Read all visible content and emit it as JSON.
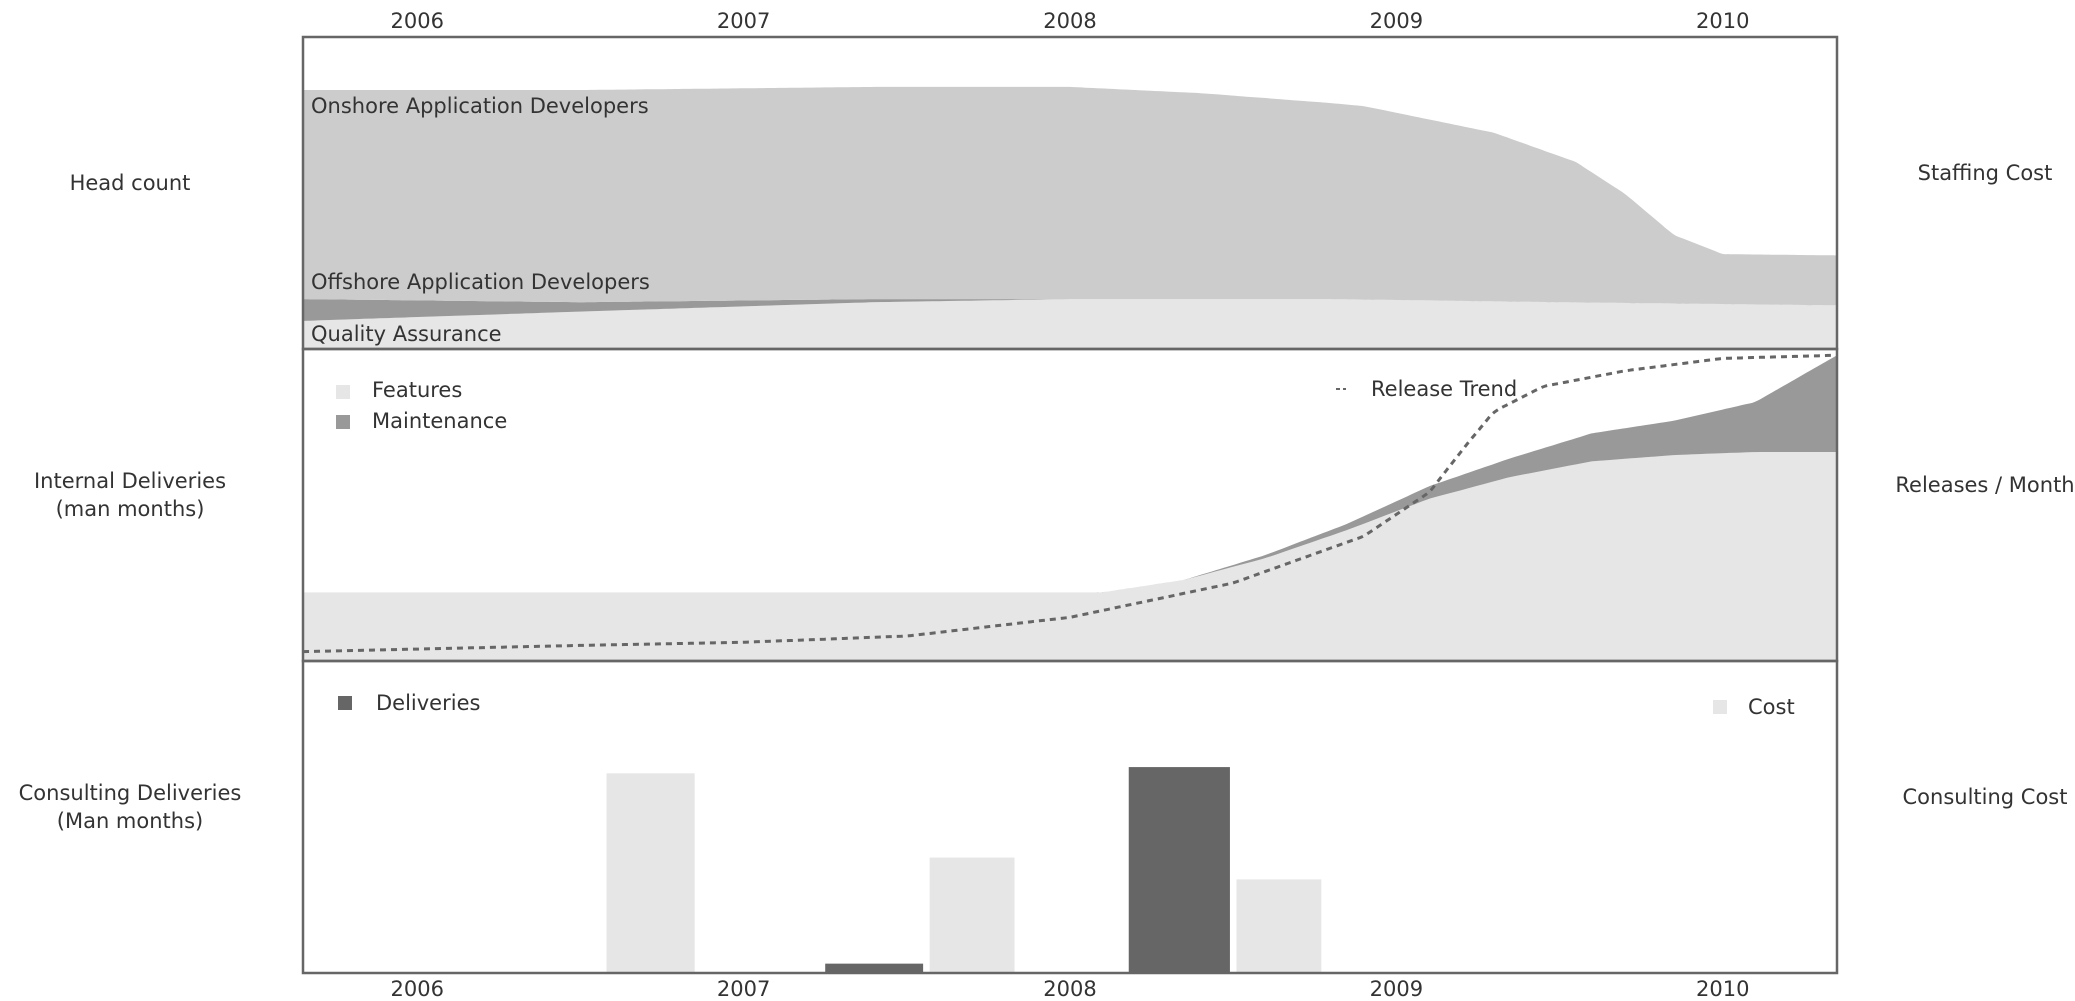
{
  "chart_data": {
    "type": "area",
    "x_axis": {
      "ticks": [
        "2006",
        "2007",
        "2008",
        "2009",
        "2010"
      ],
      "tick_values": [
        2006,
        2007,
        2008,
        2009,
        2010
      ],
      "range": [
        2005.65,
        2010.35
      ]
    },
    "colors": {
      "light": "#e6e6e6",
      "mid": "#cccccc",
      "dark": "#999999",
      "bar_dark": "#666666",
      "frame": "#666666",
      "trend": "#666666"
    },
    "panels": [
      {
        "type": "area",
        "left_label": "Head count",
        "right_label": "Staffing Cost",
        "stacked": true,
        "ylim": [
          0,
          100
        ],
        "series": [
          {
            "name": "Quality Assurance",
            "color": "#e6e6e6",
            "x": [
              2005.65,
              2006.5,
              2007.4,
              2008.0,
              2008.8,
              2009.5,
              2010.35
            ],
            "values": [
              9,
              12,
              15,
              16,
              16,
              15,
              14
            ]
          },
          {
            "name": "Offshore Application Developers",
            "color": "#999999",
            "x": [
              2005.65,
              2006.5,
              2007.4,
              2008.0,
              2008.8,
              2009.5,
              2010.35
            ],
            "values": [
              7,
              3,
              1,
              0,
              0,
              0,
              0
            ]
          },
          {
            "name": "Onshore Application Developers",
            "color": "#cccccc",
            "x": [
              2005.65,
              2006.5,
              2007.4,
              2008.0,
              2008.4,
              2008.9,
              2009.3,
              2009.55,
              2009.7,
              2009.85,
              2010.0,
              2010.35
            ],
            "values": [
              67,
              68,
              68,
              68,
              66,
              62,
              54,
              45,
              35,
              22,
              16,
              16
            ]
          }
        ]
      },
      {
        "type": "area",
        "left_label": "Internal Deliveries\n(man months)",
        "right_label": "Releases / Month",
        "stacked": true,
        "ylim": [
          0,
          100
        ],
        "series": [
          {
            "name": "Features",
            "color": "#e6e6e6",
            "x": [
              2005.65,
              2006.5,
              2007.5,
              2008.1,
              2008.35,
              2008.6,
              2008.85,
              2009.1,
              2009.35,
              2009.6,
              2009.85,
              2010.1,
              2010.35
            ],
            "values": [
              22,
              22,
              22,
              22,
              26,
              33,
              42,
              52,
              59,
              64,
              66,
              67,
              67
            ]
          },
          {
            "name": "Maintenance",
            "color": "#999999",
            "x": [
              2005.65,
              2006.5,
              2007.5,
              2008.1,
              2008.35,
              2008.6,
              2008.85,
              2009.1,
              2009.35,
              2009.6,
              2009.85,
              2010.1,
              2010.35
            ],
            "values": [
              0,
              0,
              0,
              0,
              0,
              1,
              2,
              4,
              6,
              9,
              11,
              16,
              31
            ]
          }
        ],
        "trend": {
          "name": "Release Trend",
          "x": [
            2005.65,
            2006.5,
            2007.0,
            2007.5,
            2008.0,
            2008.5,
            2008.9,
            2009.1,
            2009.22,
            2009.3,
            2009.45,
            2009.7,
            2010.0,
            2010.35
          ],
          "values": [
            3,
            5,
            6,
            8,
            14,
            25,
            40,
            54,
            70,
            80,
            88,
            93,
            97,
            98
          ]
        }
      },
      {
        "type": "bar",
        "left_label": "Consulting Deliveries\n(Man months)",
        "right_label": "Consulting Cost",
        "ylim": [
          0,
          100
        ],
        "series": [
          {
            "name": "Deliveries",
            "color": "#666666",
            "bars": [
              {
                "x0": 2007.25,
                "x1": 2007.55,
                "value": 3
              },
              {
                "x0": 2008.18,
                "x1": 2008.49,
                "value": 66
              }
            ]
          },
          {
            "name": "Cost",
            "color": "#e6e6e6",
            "bars": [
              {
                "x0": 2006.58,
                "x1": 2006.85,
                "value": 64
              },
              {
                "x0": 2007.57,
                "x1": 2007.83,
                "value": 37
              },
              {
                "x0": 2008.51,
                "x1": 2008.77,
                "value": 30
              }
            ]
          }
        ]
      }
    ]
  }
}
